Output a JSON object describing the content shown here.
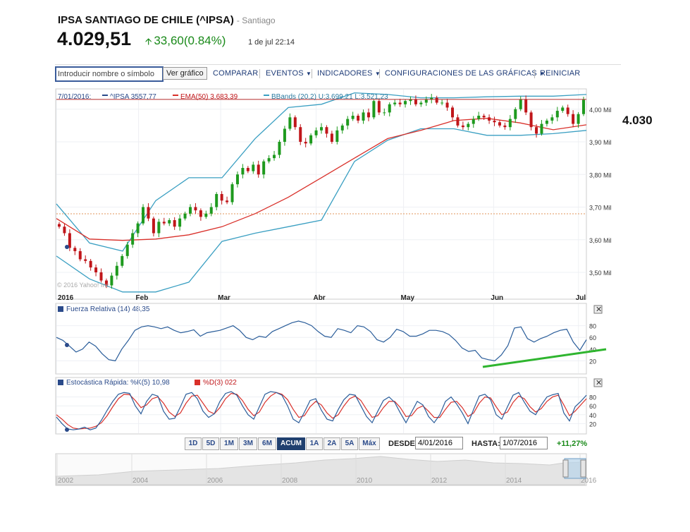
{
  "header": {
    "title": "IPSA SANTIAGO DE CHILE (^IPSA)",
    "exchange": "- Santiago",
    "price": "4.029,51",
    "change": "33,60(0.84%)",
    "time": "1 de jul 22:14"
  },
  "toolbar": {
    "symbol_placeholder": "Introducir nombre o símbolo",
    "go_label": "Ver gráfico",
    "compare": "COMPARAR",
    "events": "EVENTOS",
    "indicators": "INDICADORES",
    "settings": "CONFIGURACIONES DE LAS GRÁFICAS",
    "reset": "REINICIAR"
  },
  "legend": {
    "date": "7/01/2016:",
    "series": "^IPSA 3557,77",
    "ema": "EMA(50) 3.683,39",
    "bbands": "BBands (20,2) U:3.699,21 L:3.521,23"
  },
  "annotation": "4.030",
  "copyright": "© 2016 Yahoo! Inc.",
  "rsi_label": "Fuerza Relativa (14) 48,35",
  "stoch_label_k": "Estocástica Rápida: %K(5) 10,98",
  "stoch_label_d": "%D(3) 022",
  "ranges": [
    "1D",
    "5D",
    "1M",
    "3M",
    "6M",
    "ACUM",
    "1A",
    "2A",
    "5A",
    "Máx"
  ],
  "selected_range": "ACUM",
  "from_label": "DESDE:",
  "from_value": "4/01/2016",
  "to_label": "HASTA:",
  "to_value": "1/07/2016",
  "performance": "+11,27%",
  "colors": {
    "up": "#1e9a1e",
    "down": "#c0161a",
    "ema": "#d9302a",
    "bbands": "#3a9fc2",
    "rsi": "#2a5d9a",
    "trend": "#2fb52f",
    "stoch_k": "#2a5d9a",
    "stoch_d": "#d9302a"
  },
  "chart_data": [
    {
      "type": "candlestick",
      "title": "IPSA SANTIAGO DE CHILE (^IPSA)",
      "x_labels": [
        "2016",
        "Feb",
        "Mar",
        "Abr",
        "May",
        "Jun",
        "Jul"
      ],
      "y_ticks": [
        "4,00 Mil",
        "3,90 Mil",
        "3,80 Mil",
        "3,70 Mil",
        "3,60 Mil",
        "3,50 Mil"
      ],
      "ylim": [
        3420,
        4060
      ],
      "tick_values": [
        4000,
        3900,
        3800,
        3700,
        3600,
        3500
      ],
      "close": [
        3640,
        3620,
        3575,
        3565,
        3540,
        3535,
        3515,
        3500,
        3475,
        3460,
        3490,
        3520,
        3550,
        3585,
        3620,
        3650,
        3700,
        3665,
        3620,
        3655,
        3650,
        3660,
        3640,
        3665,
        3680,
        3700,
        3690,
        3670,
        3680,
        3700,
        3740,
        3720,
        3715,
        3770,
        3800,
        3820,
        3810,
        3830,
        3800,
        3840,
        3850,
        3860,
        3900,
        3940,
        3975,
        3945,
        3900,
        3895,
        3920,
        3935,
        3945,
        3925,
        3900,
        3935,
        3950,
        3970,
        3980,
        3965,
        3990,
        3975,
        4025,
        3990,
        3990,
        4015,
        4020,
        4015,
        4025,
        4030,
        4015,
        4020,
        4030,
        4035,
        4020,
        4020,
        4005,
        3975,
        3950,
        3945,
        3955,
        3970,
        3980,
        3975,
        3965,
        3960,
        3950,
        3945,
        3970,
        4000,
        4030,
        3990,
        3945,
        3925,
        3955,
        3965,
        3975,
        3995,
        4005,
        3985,
        3955,
        3985,
        4029
      ],
      "reference_line": 4030,
      "ema": [
        3665,
        3602,
        3598,
        3602,
        3615,
        3640,
        3680,
        3730,
        3790,
        3850,
        3910,
        3935,
        3965,
        3972,
        3958,
        3937,
        3952
      ],
      "bb_upper": [
        3710,
        3590,
        3565,
        3720,
        3790,
        3790,
        3910,
        4005,
        4015,
        4050,
        4045,
        4035,
        4035,
        4038,
        4040,
        4040,
        4045
      ],
      "bb_lower": [
        3550,
        3480,
        3440,
        3440,
        3470,
        3595,
        3620,
        3640,
        3660,
        3840,
        3905,
        3940,
        3940,
        3920,
        3920,
        3925,
        3935
      ]
    },
    {
      "type": "line",
      "title": "Fuerza Relativa (14) 48,35",
      "y_ticks": [
        "80",
        "60",
        "40",
        "20"
      ],
      "ylim": [
        0,
        100
      ],
      "values": [
        60,
        55,
        45,
        35,
        40,
        52,
        45,
        32,
        22,
        20,
        40,
        55,
        72,
        78,
        80,
        78,
        75,
        78,
        72,
        68,
        70,
        73,
        62,
        68,
        70,
        72,
        76,
        80,
        72,
        60,
        56,
        62,
        60,
        70,
        75,
        80,
        85,
        88,
        85,
        80,
        70,
        62,
        60,
        75,
        72,
        68,
        80,
        78,
        70,
        56,
        52,
        60,
        74,
        70,
        62,
        62,
        66,
        72,
        72,
        70,
        65,
        55,
        42,
        36,
        38,
        25,
        22,
        20,
        30,
        46,
        76,
        78,
        58,
        52,
        58,
        62,
        68,
        72,
        74,
        52,
        38,
        56
      ]
    },
    {
      "type": "line",
      "title": "Estocástica Rápida",
      "y_ticks": [
        "80",
        "60",
        "40",
        "20"
      ],
      "ylim": [
        0,
        100
      ],
      "series": [
        {
          "name": "%K(5)",
          "values": [
            35,
            20,
            8,
            6,
            8,
            12,
            6,
            10,
            28,
            50,
            70,
            86,
            90,
            88,
            60,
            42,
            70,
            86,
            82,
            48,
            30,
            32,
            58,
            86,
            90,
            76,
            48,
            34,
            42,
            70,
            88,
            92,
            84,
            60,
            40,
            30,
            58,
            86,
            92,
            90,
            84,
            60,
            30,
            22,
            46,
            72,
            76,
            50,
            30,
            26,
            52,
            74,
            86,
            84,
            60,
            36,
            22,
            48,
            72,
            80,
            68,
            44,
            22,
            46,
            70,
            62,
            36,
            22,
            40,
            70,
            80,
            64,
            44,
            20,
            52,
            82,
            86,
            74,
            40,
            30,
            58,
            84,
            90,
            68,
            48,
            40,
            62,
            80,
            85,
            88,
            44,
            26,
            58,
            70,
            84
          ]
        },
        {
          "name": "%D(3)",
          "values": [
            40,
            30,
            18,
            10,
            8,
            9,
            10,
            14,
            22,
            38,
            58,
            76,
            86,
            85,
            72,
            56,
            62,
            76,
            80,
            66,
            46,
            36,
            44,
            66,
            82,
            84,
            66,
            48,
            42,
            56,
            76,
            88,
            86,
            72,
            52,
            38,
            46,
            68,
            82,
            90,
            86,
            74,
            52,
            34,
            38,
            58,
            70,
            62,
            44,
            32,
            40,
            60,
            76,
            82,
            72,
            52,
            34,
            38,
            56,
            70,
            70,
            56,
            36,
            38,
            54,
            60,
            48,
            34,
            34,
            52,
            68,
            70,
            56,
            36,
            44,
            66,
            80,
            78,
            58,
            40,
            46,
            68,
            82,
            76,
            58,
            46,
            54,
            70,
            80,
            84,
            62,
            38,
            48,
            62,
            76
          ]
        }
      ]
    }
  ],
  "navigator": {
    "labels": [
      "2002",
      "2004",
      "2006",
      "2008",
      "2010",
      "2012",
      "2014",
      "2016"
    ]
  }
}
